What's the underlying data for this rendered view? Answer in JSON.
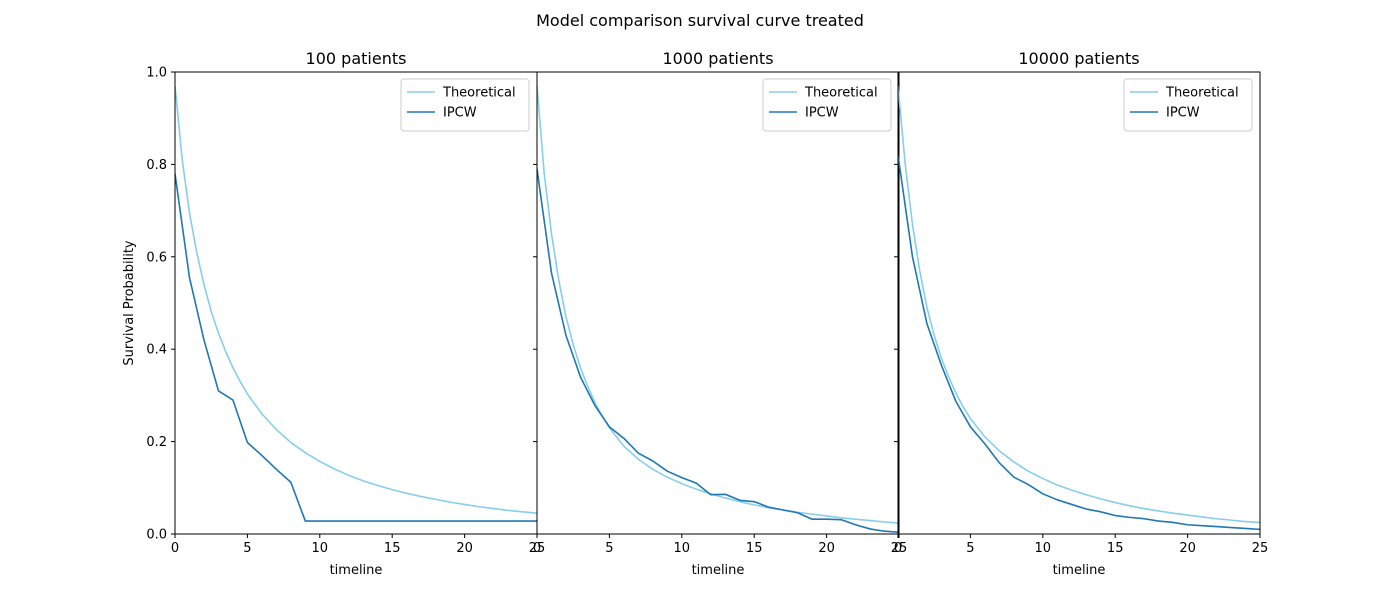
{
  "figure": {
    "title": "Model comparison survival curve treated"
  },
  "colors": {
    "theoretical": "#87ceeb",
    "ipcw": "#1f77b4"
  },
  "chart_data": [
    {
      "type": "line",
      "title": "100 patients",
      "xlabel": "timeline",
      "ylabel": "Survival Probability",
      "xlim": [
        0,
        25
      ],
      "ylim": [
        0,
        1
      ],
      "xticks": [
        0,
        5,
        10,
        15,
        20,
        25
      ],
      "yticks": [
        0.0,
        0.2,
        0.4,
        0.6,
        0.8,
        1.0
      ],
      "grid": false,
      "legend": "top-right",
      "series": [
        {
          "name": "Theoretical",
          "color": "#87ceeb",
          "x": [
            0,
            0.5,
            1,
            1.5,
            2,
            2.5,
            3,
            3.5,
            4,
            4.5,
            5,
            6,
            7,
            8,
            9,
            10,
            11,
            12,
            13,
            14,
            15,
            16,
            17,
            18,
            19,
            20,
            21,
            22,
            23,
            24,
            25
          ],
          "y": [
            0.97,
            0.81,
            0.695,
            0.61,
            0.54,
            0.482,
            0.435,
            0.395,
            0.36,
            0.33,
            0.303,
            0.26,
            0.226,
            0.198,
            0.176,
            0.157,
            0.141,
            0.127,
            0.115,
            0.105,
            0.096,
            0.088,
            0.081,
            0.075,
            0.069,
            0.064,
            0.059,
            0.055,
            0.051,
            0.048,
            0.045
          ]
        },
        {
          "name": "IPCW",
          "color": "#1f77b4",
          "x": [
            0,
            1,
            2,
            3,
            4,
            5,
            6,
            7,
            8,
            9,
            10,
            15,
            20,
            25
          ],
          "y": [
            0.78,
            0.555,
            0.42,
            0.31,
            0.29,
            0.198,
            0.17,
            0.14,
            0.112,
            0.028,
            0.028,
            0.028,
            0.028,
            0.028
          ]
        }
      ]
    },
    {
      "type": "line",
      "title": "1000 patients",
      "xlabel": "timeline",
      "xlim": [
        0,
        25
      ],
      "ylim": [
        0,
        1
      ],
      "xticks": [
        0,
        5,
        10,
        15,
        20,
        25
      ],
      "grid": false,
      "legend": "top-right",
      "series": [
        {
          "name": "Theoretical",
          "color": "#87ceeb",
          "x": [
            0,
            0.5,
            1,
            1.5,
            2,
            2.5,
            3,
            3.5,
            4,
            4.5,
            5,
            6,
            7,
            8,
            9,
            10,
            11,
            12,
            13,
            14,
            15,
            16,
            17,
            18,
            19,
            20,
            21,
            22,
            23,
            24,
            25
          ],
          "y": [
            0.97,
            0.78,
            0.65,
            0.55,
            0.47,
            0.41,
            0.36,
            0.32,
            0.285,
            0.255,
            0.23,
            0.19,
            0.162,
            0.14,
            0.123,
            0.109,
            0.097,
            0.087,
            0.078,
            0.07,
            0.063,
            0.057,
            0.052,
            0.047,
            0.043,
            0.039,
            0.035,
            0.032,
            0.029,
            0.026,
            0.024
          ]
        },
        {
          "name": "IPCW",
          "color": "#1f77b4",
          "x": [
            0,
            1,
            2,
            3,
            4,
            5,
            6,
            7,
            8,
            9,
            10,
            11,
            12,
            13,
            14,
            15,
            16,
            17,
            18,
            19,
            20,
            21,
            22,
            23,
            24,
            25
          ],
          "y": [
            0.79,
            0.565,
            0.43,
            0.34,
            0.278,
            0.232,
            0.207,
            0.175,
            0.158,
            0.136,
            0.122,
            0.11,
            0.085,
            0.086,
            0.073,
            0.07,
            0.058,
            0.052,
            0.046,
            0.032,
            0.032,
            0.031,
            0.02,
            0.011,
            0.006,
            0.004
          ]
        }
      ]
    },
    {
      "type": "line",
      "title": "10000 patients",
      "xlabel": "timeline",
      "xlim": [
        0,
        25
      ],
      "ylim": [
        0,
        1
      ],
      "xticks": [
        0,
        5,
        10,
        15,
        20,
        25
      ],
      "grid": false,
      "legend": "top-right",
      "series": [
        {
          "name": "Theoretical",
          "color": "#87ceeb",
          "x": [
            0,
            0.5,
            1,
            1.5,
            2,
            2.5,
            3,
            3.5,
            4,
            4.5,
            5,
            6,
            7,
            8,
            9,
            10,
            11,
            12,
            13,
            14,
            15,
            16,
            17,
            18,
            19,
            20,
            21,
            22,
            23,
            24,
            25
          ],
          "y": [
            0.97,
            0.8,
            0.67,
            0.57,
            0.49,
            0.43,
            0.38,
            0.34,
            0.305,
            0.275,
            0.25,
            0.21,
            0.18,
            0.156,
            0.136,
            0.12,
            0.106,
            0.095,
            0.085,
            0.076,
            0.068,
            0.061,
            0.055,
            0.05,
            0.045,
            0.041,
            0.037,
            0.033,
            0.03,
            0.027,
            0.025
          ]
        },
        {
          "name": "IPCW",
          "color": "#1f77b4",
          "x": [
            0,
            1,
            2,
            3,
            4,
            5,
            6,
            7,
            8,
            9,
            10,
            11,
            12,
            13,
            14,
            15,
            16,
            17,
            18,
            19,
            20,
            21,
            22,
            23,
            24,
            25
          ],
          "y": [
            0.82,
            0.6,
            0.455,
            0.365,
            0.287,
            0.232,
            0.195,
            0.154,
            0.123,
            0.107,
            0.087,
            0.074,
            0.064,
            0.054,
            0.048,
            0.04,
            0.036,
            0.033,
            0.028,
            0.025,
            0.02,
            0.018,
            0.016,
            0.014,
            0.012,
            0.01
          ]
        }
      ]
    }
  ]
}
